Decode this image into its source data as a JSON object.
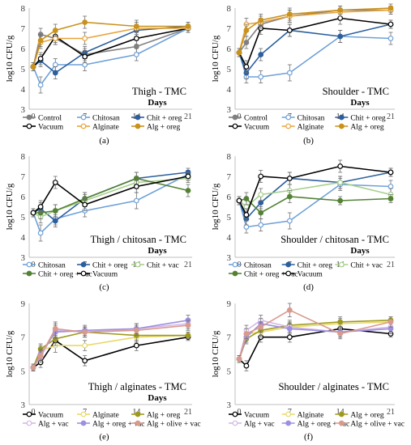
{
  "chart_data": [
    {
      "type": "line",
      "panel_label": "(a)",
      "title": "Thigh - TMC",
      "xlabel": "Days",
      "ylabel": "log10 CFU/g",
      "ylim": [
        3,
        8
      ],
      "yticks": [
        3,
        4,
        5,
        6,
        7,
        8
      ],
      "xticks": [
        0,
        7,
        14,
        21
      ],
      "x": [
        0,
        1,
        3,
        7,
        14,
        21
      ],
      "grid": false,
      "legend_position": "bottom",
      "series": [
        {
          "name": "Control",
          "color": "#808080",
          "marker": "filled",
          "values": [
            5.1,
            6.7,
            6.5,
            5.7,
            6.1,
            7.0
          ],
          "err": [
            0.2,
            0.3,
            0.3,
            0.3,
            0.3,
            0.2
          ]
        },
        {
          "name": "Chitosan",
          "color": "#6FA1D8",
          "marker": "open",
          "values": [
            5.1,
            4.2,
            5.2,
            5.2,
            5.7,
            7.0
          ],
          "err": [
            0.2,
            0.4,
            0.3,
            0.3,
            0.3,
            0.2
          ]
        },
        {
          "name": "Chit + oreg",
          "color": "#2C5F9E",
          "marker": "filled",
          "values": [
            5.1,
            5.4,
            4.8,
            5.8,
            6.9,
            7.1
          ],
          "err": [
            0.2,
            0.3,
            0.3,
            0.3,
            0.3,
            0.2
          ]
        },
        {
          "name": "Vacuum",
          "color": "#000000",
          "marker": "open",
          "values": [
            5.1,
            5.5,
            6.6,
            5.6,
            6.5,
            7.0
          ],
          "err": [
            0.2,
            0.3,
            0.3,
            0.3,
            0.3,
            0.2
          ]
        },
        {
          "name": "Alginate",
          "color": "#E8A33A",
          "marker": "open",
          "values": [
            5.1,
            6.3,
            6.5,
            6.5,
            7.0,
            7.0
          ],
          "err": [
            0.2,
            0.3,
            0.3,
            0.3,
            0.3,
            0.2
          ]
        },
        {
          "name": "Alg + oreg",
          "color": "#C9921A",
          "marker": "filled",
          "values": [
            5.1,
            6.4,
            6.9,
            7.3,
            7.1,
            7.1
          ],
          "err": [
            0.2,
            0.3,
            0.3,
            0.3,
            0.3,
            0.2
          ]
        }
      ]
    },
    {
      "type": "line",
      "panel_label": "(b)",
      "title": "Shoulder - TMC",
      "xlabel": "Days",
      "ylabel": "log10 CFU/g",
      "ylim": [
        3,
        8
      ],
      "yticks": [
        3,
        4,
        5,
        6,
        7,
        8
      ],
      "xticks": [
        0,
        7,
        14,
        21
      ],
      "x": [
        0,
        1,
        3,
        7,
        14,
        21
      ],
      "grid": false,
      "legend_position": "bottom",
      "series": [
        {
          "name": "Control",
          "color": "#808080",
          "marker": "filled",
          "values": [
            5.8,
            6.3,
            7.2,
            7.6,
            7.9,
            7.9
          ],
          "err": [
            0.2,
            0.3,
            0.3,
            0.3,
            0.2,
            0.2
          ]
        },
        {
          "name": "Chitosan",
          "color": "#6FA1D8",
          "marker": "open",
          "values": [
            5.8,
            4.6,
            4.6,
            4.8,
            6.6,
            6.5
          ],
          "err": [
            0.2,
            0.3,
            0.3,
            0.4,
            0.3,
            0.3
          ]
        },
        {
          "name": "Chit + oreg",
          "color": "#2C5F9E",
          "marker": "filled",
          "values": [
            5.8,
            4.8,
            5.7,
            6.9,
            6.6,
            7.2
          ],
          "err": [
            0.2,
            0.3,
            0.3,
            0.3,
            0.3,
            0.2
          ]
        },
        {
          "name": "Vacuum",
          "color": "#000000",
          "marker": "open",
          "values": [
            5.8,
            5.1,
            7.0,
            6.9,
            7.5,
            7.2
          ],
          "err": [
            0.2,
            0.3,
            0.3,
            0.3,
            0.3,
            0.2
          ]
        },
        {
          "name": "Alginate",
          "color": "#E8A33A",
          "marker": "open",
          "values": [
            5.8,
            7.2,
            7.3,
            7.6,
            7.8,
            7.9
          ],
          "err": [
            0.2,
            0.3,
            0.3,
            0.3,
            0.2,
            0.2
          ]
        },
        {
          "name": "Alg + oreg",
          "color": "#C9921A",
          "marker": "filled",
          "values": [
            5.8,
            6.9,
            7.4,
            7.7,
            7.9,
            8.0
          ],
          "err": [
            0.2,
            0.3,
            0.3,
            0.3,
            0.2,
            0.2
          ]
        }
      ]
    },
    {
      "type": "line",
      "panel_label": "(c)",
      "title": "Thigh / chitosan - TMC",
      "xlabel": "Days",
      "ylabel": "log10 CFU/g",
      "ylim": [
        3,
        8
      ],
      "yticks": [
        3,
        4,
        5,
        6,
        7,
        8
      ],
      "xticks": [
        0,
        7,
        14,
        21
      ],
      "x": [
        0,
        1,
        3,
        7,
        14,
        21
      ],
      "grid": false,
      "legend_position": "bottom",
      "series": [
        {
          "name": "Chitosan",
          "color": "#6FA1D8",
          "marker": "open",
          "values": [
            5.2,
            4.2,
            4.9,
            5.3,
            5.8,
            7.1
          ],
          "err": [
            0.2,
            0.4,
            0.3,
            0.3,
            0.4,
            0.2
          ]
        },
        {
          "name": "Chit + oreg",
          "color": "#2C5F9E",
          "marker": "filled",
          "values": [
            5.2,
            5.4,
            4.8,
            5.9,
            6.9,
            7.2
          ],
          "err": [
            0.2,
            0.3,
            0.3,
            0.3,
            0.3,
            0.2
          ]
        },
        {
          "name": "Chit + vac",
          "color": "#A8D08D",
          "marker": "open",
          "values": [
            5.2,
            5.0,
            5.3,
            5.8,
            6.7,
            6.9
          ],
          "err": [
            0.2,
            0.3,
            0.3,
            0.3,
            0.3,
            0.2
          ]
        },
        {
          "name": "Chit + oreg + vac",
          "color": "#548235",
          "marker": "filled",
          "values": [
            5.2,
            5.2,
            5.3,
            5.9,
            6.9,
            6.3
          ],
          "err": [
            0.2,
            0.3,
            0.3,
            0.3,
            0.3,
            0.3
          ]
        },
        {
          "name": "Vacuum",
          "color": "#000000",
          "marker": "open",
          "values": [
            5.2,
            5.5,
            6.7,
            5.6,
            6.5,
            7.0
          ],
          "err": [
            0.2,
            0.3,
            0.3,
            0.3,
            0.3,
            0.2
          ]
        }
      ]
    },
    {
      "type": "line",
      "panel_label": "(d)",
      "title": "Shoulder / chitosan - TMC",
      "xlabel": "Days",
      "ylabel": "log10 CFU/g",
      "ylim": [
        3,
        8
      ],
      "yticks": [
        3,
        4,
        5,
        6,
        7,
        8
      ],
      "xticks": [
        0,
        7,
        14,
        21
      ],
      "x": [
        0,
        1,
        3,
        7,
        14,
        21
      ],
      "grid": false,
      "legend_position": "bottom",
      "series": [
        {
          "name": "Chitosan",
          "color": "#6FA1D8",
          "marker": "open",
          "values": [
            5.8,
            4.5,
            4.6,
            4.8,
            6.6,
            6.5
          ],
          "err": [
            0.2,
            0.3,
            0.3,
            0.4,
            0.3,
            0.3
          ]
        },
        {
          "name": "Chit + oreg",
          "color": "#2C5F9E",
          "marker": "filled",
          "values": [
            5.8,
            4.9,
            5.7,
            6.9,
            6.7,
            7.2
          ],
          "err": [
            0.2,
            0.3,
            0.3,
            0.3,
            0.3,
            0.2
          ]
        },
        {
          "name": "Chit + vac",
          "color": "#A8D08D",
          "marker": "open",
          "values": [
            5.8,
            5.5,
            6.1,
            6.3,
            6.7,
            6.1
          ],
          "err": [
            0.2,
            0.3,
            0.3,
            0.3,
            0.3,
            0.3
          ]
        },
        {
          "name": "Chit + oreg + vac",
          "color": "#548235",
          "marker": "filled",
          "values": [
            5.8,
            5.9,
            5.2,
            6.0,
            5.8,
            5.9
          ],
          "err": [
            0.2,
            0.3,
            0.3,
            0.3,
            0.2,
            0.2
          ]
        },
        {
          "name": "Vacuum",
          "color": "#000000",
          "marker": "open",
          "values": [
            5.8,
            5.1,
            7.0,
            6.9,
            7.5,
            7.2
          ],
          "err": [
            0.2,
            0.3,
            0.3,
            0.3,
            0.3,
            0.2
          ]
        }
      ]
    },
    {
      "type": "line",
      "panel_label": "(e)",
      "title": "Thigh / alginates - TMC",
      "xlabel": "Days",
      "ylabel": "log10 CFU/g",
      "ylim": [
        3,
        9
      ],
      "yticks": [
        3,
        5,
        7,
        9
      ],
      "xticks": [
        0,
        7,
        14,
        21
      ],
      "x": [
        0,
        1,
        3,
        7,
        14,
        21
      ],
      "grid": false,
      "legend_position": "bottom",
      "series": [
        {
          "name": "Vacuum",
          "color": "#000000",
          "marker": "open",
          "values": [
            5.2,
            5.5,
            6.8,
            5.6,
            6.5,
            7.0
          ],
          "err": [
            0.2,
            0.3,
            0.4,
            0.3,
            0.3,
            0.2
          ]
        },
        {
          "name": "Alginate",
          "color": "#E8D96A",
          "marker": "open",
          "values": [
            5.2,
            6.2,
            6.5,
            6.5,
            7.0,
            7.1
          ],
          "err": [
            0.2,
            0.3,
            0.4,
            0.3,
            0.3,
            0.2
          ]
        },
        {
          "name": "Alg + oreg",
          "color": "#9E9A1E",
          "marker": "filled",
          "values": [
            5.2,
            6.3,
            6.9,
            7.3,
            7.1,
            7.1
          ],
          "err": [
            0.2,
            0.3,
            0.4,
            0.3,
            0.3,
            0.2
          ]
        },
        {
          "name": "Alg + vac",
          "color": "#D4B8E8",
          "marker": "open",
          "values": [
            5.2,
            5.8,
            7.4,
            7.3,
            7.5,
            7.8
          ],
          "err": [
            0.2,
            0.3,
            0.4,
            0.3,
            0.3,
            0.3
          ]
        },
        {
          "name": "Alg + oreg + vac",
          "color": "#9E8FE0",
          "marker": "filled",
          "values": [
            5.2,
            6.0,
            7.3,
            7.4,
            7.5,
            8.0
          ],
          "err": [
            0.2,
            0.3,
            0.4,
            0.3,
            0.3,
            0.3
          ]
        },
        {
          "name": "Alg + olive + vac",
          "color": "#D99A8E",
          "marker": "filled",
          "values": [
            5.2,
            5.9,
            7.5,
            7.3,
            7.4,
            7.7
          ],
          "err": [
            0.2,
            0.3,
            0.4,
            0.3,
            0.3,
            0.3
          ]
        }
      ]
    },
    {
      "type": "line",
      "panel_label": "(f)",
      "title": "Shoulder / alginates - TMC",
      "xlabel": "",
      "ylabel": "log10 CFU/g",
      "ylim": [
        3,
        9
      ],
      "yticks": [
        3,
        5,
        7,
        9
      ],
      "xticks": [
        0,
        7,
        14,
        21
      ],
      "x": [
        0,
        1,
        3,
        7,
        14,
        21
      ],
      "grid": false,
      "legend_position": "bottom",
      "series": [
        {
          "name": "Vacuum",
          "color": "#000000",
          "marker": "open",
          "values": [
            5.7,
            5.3,
            7.0,
            7.0,
            7.5,
            7.2
          ],
          "err": [
            0.2,
            0.3,
            0.3,
            0.3,
            0.3,
            0.2
          ]
        },
        {
          "name": "Alginate",
          "color": "#E8D96A",
          "marker": "open",
          "values": [
            5.7,
            7.2,
            7.3,
            7.6,
            7.8,
            7.9
          ],
          "err": [
            0.2,
            0.3,
            0.3,
            0.3,
            0.3,
            0.2
          ]
        },
        {
          "name": "Alg + oreg",
          "color": "#9E9A1E",
          "marker": "filled",
          "values": [
            5.7,
            6.9,
            7.4,
            7.7,
            7.9,
            8.0
          ],
          "err": [
            0.2,
            0.3,
            0.3,
            0.3,
            0.3,
            0.2
          ]
        },
        {
          "name": "Alg + vac",
          "color": "#D4B8E8",
          "marker": "open",
          "values": [
            5.7,
            7.4,
            8.0,
            7.6,
            7.3,
            7.6
          ],
          "err": [
            0.2,
            0.3,
            0.3,
            0.3,
            0.3,
            0.3
          ]
        },
        {
          "name": "Alg + oreg + vac",
          "color": "#9E8FE0",
          "marker": "filled",
          "values": [
            5.7,
            7.0,
            7.8,
            7.5,
            7.3,
            7.5
          ],
          "err": [
            0.2,
            0.3,
            0.3,
            0.3,
            0.3,
            0.3
          ]
        },
        {
          "name": "Alg + olive + vac",
          "color": "#D99A8E",
          "marker": "filled",
          "values": [
            5.7,
            7.2,
            7.6,
            8.6,
            7.2,
            7.9
          ],
          "err": [
            0.2,
            0.3,
            0.3,
            0.4,
            0.3,
            0.3
          ]
        }
      ]
    }
  ]
}
